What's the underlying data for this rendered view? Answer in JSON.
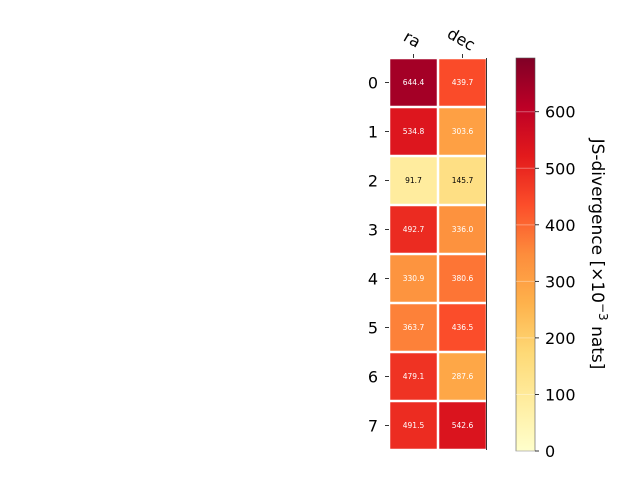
{
  "chart_data": {
    "type": "heatmap",
    "columns": [
      "ra",
      "dec"
    ],
    "rows": [
      "0",
      "1",
      "2",
      "3",
      "4",
      "5",
      "6",
      "7"
    ],
    "values": [
      [
        644.4,
        439.7
      ],
      [
        534.8,
        303.6
      ],
      [
        91.7,
        145.7
      ],
      [
        492.7,
        336.0
      ],
      [
        330.9,
        380.6
      ],
      [
        363.7,
        436.5
      ],
      [
        479.1,
        287.6
      ],
      [
        491.5,
        542.6
      ]
    ],
    "cell_labels": [
      [
        "644.4",
        "439.7"
      ],
      [
        "534.8",
        "303.6"
      ],
      [
        "91.7",
        "145.7"
      ],
      [
        "492.7",
        "336.0"
      ],
      [
        "330.9",
        "380.6"
      ],
      [
        "363.7",
        "436.5"
      ],
      [
        "479.1",
        "287.6"
      ],
      [
        "491.5",
        "542.6"
      ]
    ],
    "colorbar": {
      "label_prefix": "JS-divergence [×10",
      "label_exp": "−3",
      "label_suffix": " nats]",
      "range": [
        0,
        695
      ],
      "ticks": [
        0,
        100,
        200,
        300,
        400,
        500,
        600
      ],
      "tick_labels": [
        "0",
        "100",
        "200",
        "300",
        "400",
        "500",
        "600"
      ],
      "colormap": "YlOrRd"
    },
    "grid": false
  }
}
